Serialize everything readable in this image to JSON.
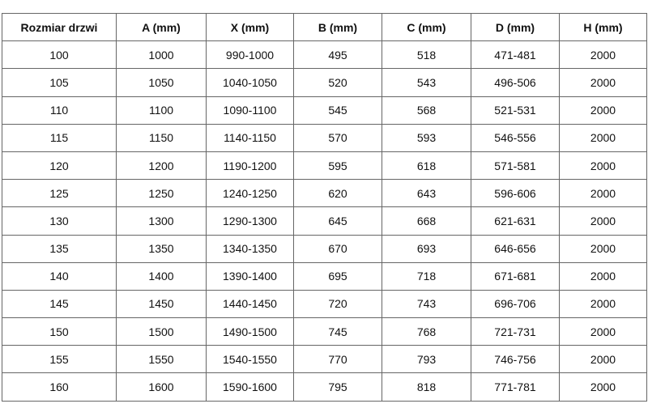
{
  "table": {
    "headers": [
      "Rozmiar drzwi",
      "A (mm)",
      "X (mm)",
      "B (mm)",
      "C (mm)",
      "D (mm)",
      "H (mm)"
    ],
    "rows": [
      [
        "100",
        "1000",
        "990-1000",
        "495",
        "518",
        "471-481",
        "2000"
      ],
      [
        "105",
        "1050",
        "1040-1050",
        "520",
        "543",
        "496-506",
        "2000"
      ],
      [
        "110",
        "1100",
        "1090-1100",
        "545",
        "568",
        "521-531",
        "2000"
      ],
      [
        "115",
        "1150",
        "1140-1150",
        "570",
        "593",
        "546-556",
        "2000"
      ],
      [
        "120",
        "1200",
        "1190-1200",
        "595",
        "618",
        "571-581",
        "2000"
      ],
      [
        "125",
        "1250",
        "1240-1250",
        "620",
        "643",
        "596-606",
        "2000"
      ],
      [
        "130",
        "1300",
        "1290-1300",
        "645",
        "668",
        "621-631",
        "2000"
      ],
      [
        "135",
        "1350",
        "1340-1350",
        "670",
        "693",
        "646-656",
        "2000"
      ],
      [
        "140",
        "1400",
        "1390-1400",
        "695",
        "718",
        "671-681",
        "2000"
      ],
      [
        "145",
        "1450",
        "1440-1450",
        "720",
        "743",
        "696-706",
        "2000"
      ],
      [
        "150",
        "1500",
        "1490-1500",
        "745",
        "768",
        "721-731",
        "2000"
      ],
      [
        "155",
        "1550",
        "1540-1550",
        "770",
        "793",
        "746-756",
        "2000"
      ],
      [
        "160",
        "1600",
        "1590-1600",
        "795",
        "818",
        "771-781",
        "2000"
      ]
    ]
  }
}
